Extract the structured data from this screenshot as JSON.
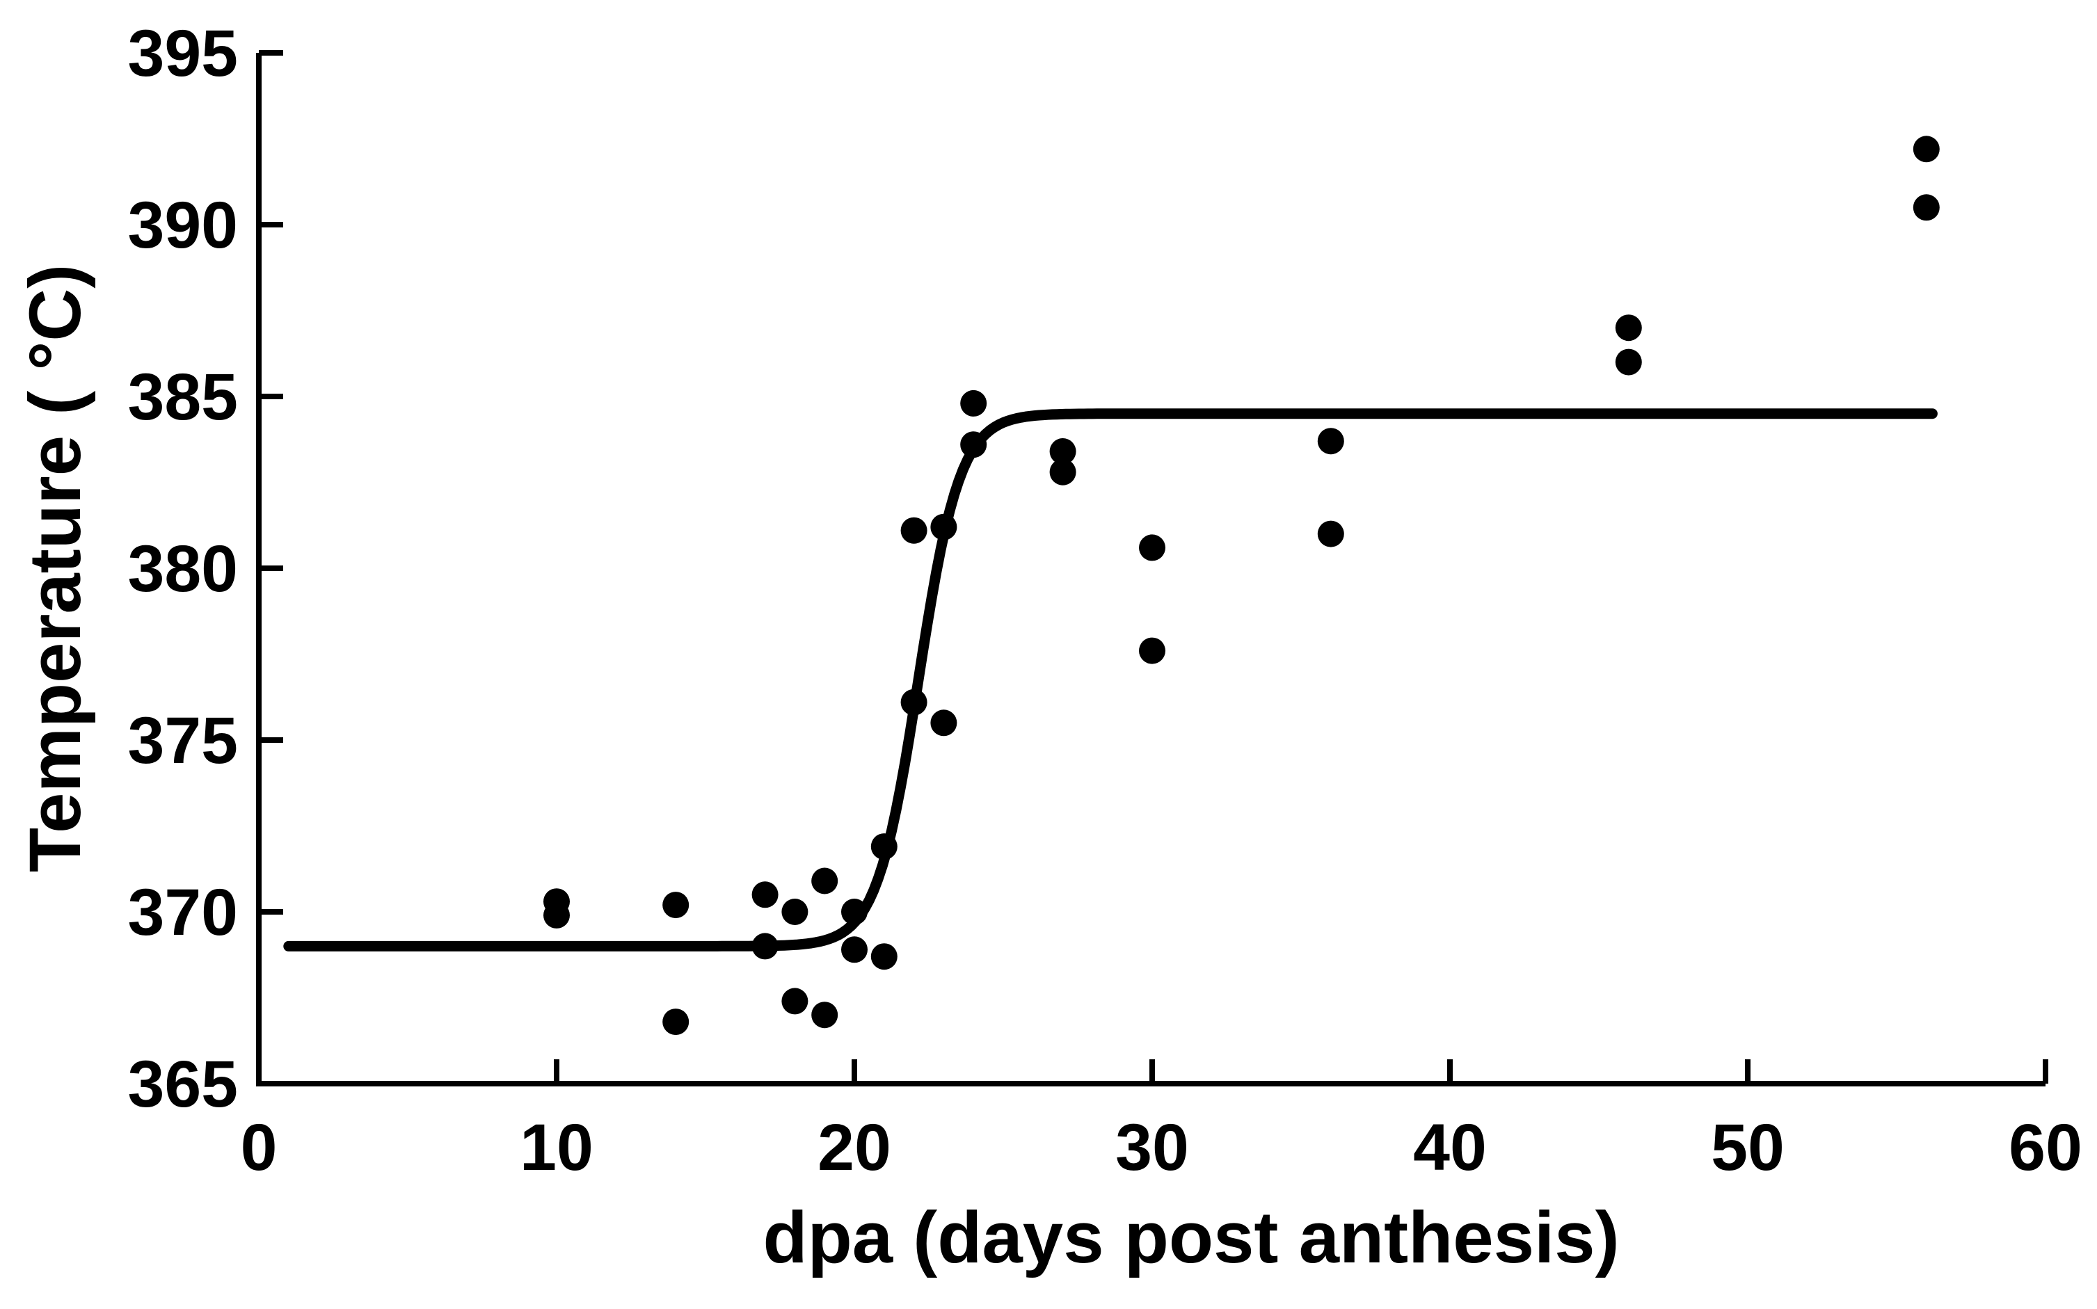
{
  "figure": {
    "background_color": "#ffffff",
    "ink_color": "#000000"
  },
  "chart_data": {
    "type": "scatter",
    "title": "",
    "xlabel": "dpa (days post anthesis)",
    "ylabel": "Temperature ( °C)",
    "xlim": [
      0,
      60
    ],
    "ylim": [
      365,
      395
    ],
    "xticks": [
      0,
      10,
      20,
      30,
      40,
      50,
      60
    ],
    "yticks": [
      365,
      370,
      375,
      380,
      385,
      390,
      395
    ],
    "grid": false,
    "legend": "none",
    "marker": "filled-black-circle",
    "points": [
      {
        "dpa": 10,
        "temp": 370.3
      },
      {
        "dpa": 10,
        "temp": 369.9
      },
      {
        "dpa": 14,
        "temp": 370.2
      },
      {
        "dpa": 14,
        "temp": 366.8
      },
      {
        "dpa": 17,
        "temp": 370.5
      },
      {
        "dpa": 17,
        "temp": 369.0
      },
      {
        "dpa": 18,
        "temp": 370.0
      },
      {
        "dpa": 18,
        "temp": 367.4
      },
      {
        "dpa": 19,
        "temp": 370.9
      },
      {
        "dpa": 19,
        "temp": 367.0
      },
      {
        "dpa": 20,
        "temp": 370.0
      },
      {
        "dpa": 20,
        "temp": 368.9
      },
      {
        "dpa": 21,
        "temp": 371.9
      },
      {
        "dpa": 21,
        "temp": 368.7
      },
      {
        "dpa": 22,
        "temp": 381.1
      },
      {
        "dpa": 22,
        "temp": 376.1
      },
      {
        "dpa": 23,
        "temp": 381.2
      },
      {
        "dpa": 23,
        "temp": 375.5
      },
      {
        "dpa": 24,
        "temp": 384.8
      },
      {
        "dpa": 24,
        "temp": 383.6
      },
      {
        "dpa": 27,
        "temp": 383.4
      },
      {
        "dpa": 27,
        "temp": 382.8
      },
      {
        "dpa": 30,
        "temp": 380.6
      },
      {
        "dpa": 30,
        "temp": 377.6
      },
      {
        "dpa": 36,
        "temp": 383.7
      },
      {
        "dpa": 36,
        "temp": 381.0
      },
      {
        "dpa": 46,
        "temp": 387.0
      },
      {
        "dpa": 46,
        "temp": 386.0
      },
      {
        "dpa": 56,
        "temp": 392.2
      },
      {
        "dpa": 56,
        "temp": 390.5
      }
    ],
    "fit_line": {
      "shape": "logistic-step",
      "baseline": 369.0,
      "plateau": 384.5,
      "midpoint_dpa": 22.15,
      "steepness_scale": 0.7,
      "x_start": 1.0,
      "x_end": 56.3
    }
  }
}
